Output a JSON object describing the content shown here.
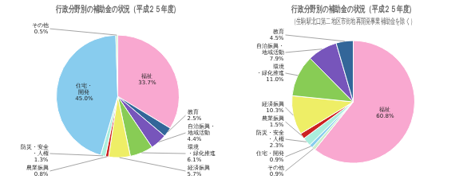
{
  "chart_data": [
    {
      "type": "pie",
      "title": "行政分野別の補助金の状況（平成２５年度）",
      "categories": [
        "福祉",
        "教育",
        "自治振興・\n地域活動",
        "環境\n・緑化推進",
        "経済振興",
        "農業振興",
        "防災・安全\n・人権",
        "住宅・\n開発",
        "その他"
      ],
      "values": [
        33.7,
        2.5,
        4.4,
        6.1,
        5.7,
        0.8,
        1.3,
        45.0,
        0.5
      ],
      "value_labels": [
        "33.7%",
        "2.5%",
        "4.4%",
        "6.1%",
        "5.7%",
        "0.8%",
        "1.3%",
        "45.0%",
        "0.5%"
      ],
      "colors": [
        "#f9a8d0",
        "#336699",
        "#7755bb",
        "#88cc55",
        "#eeee66",
        "#cc2222",
        "#aaeedd",
        "#88ccee",
        "#cceecc"
      ],
      "data_labels": true
    },
    {
      "type": "pie",
      "title": "行政分野別の補助金の状況（平成２５年度）",
      "subtitle": "（生駒駅北口第二地区市街地再開発事業補助金を除く）",
      "categories": [
        "福祉",
        "その他",
        "住宅・開発",
        "防災・安全\n・人権",
        "農業振興",
        "経済振興",
        "環境\n・緑化推進",
        "自治振興・\n地域活動",
        "教育"
      ],
      "values": [
        60.8,
        0.9,
        0.9,
        2.3,
        1.5,
        10.3,
        11.0,
        7.9,
        4.5
      ],
      "value_labels": [
        "60.8%",
        "0.9%",
        "0.9%",
        "2.3%",
        "1.5%",
        "10.3%",
        "11.0%",
        "7.9%",
        "4.5%"
      ],
      "colors": [
        "#f9a8d0",
        "#cceecc",
        "#88ccee",
        "#aaeedd",
        "#cc2222",
        "#eeee66",
        "#88cc55",
        "#7755bb",
        "#336699"
      ],
      "data_labels": true
    }
  ]
}
